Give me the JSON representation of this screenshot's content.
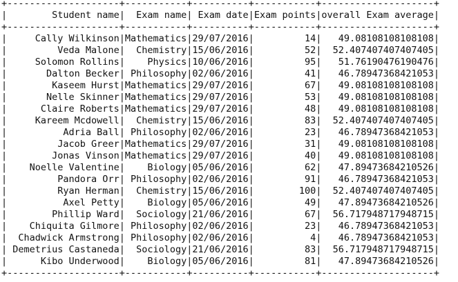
{
  "table": {
    "columns": [
      {
        "label": "Student name",
        "width": 20,
        "align": "right"
      },
      {
        "label": "Exam name",
        "width": 11,
        "align": "right"
      },
      {
        "label": "Exam date",
        "width": 10,
        "align": "right"
      },
      {
        "label": "Exam points",
        "width": 11,
        "align": "right"
      },
      {
        "label": "overall Exam average",
        "width": 20,
        "align": "right"
      }
    ],
    "rows": [
      [
        "Cally Wilkinson",
        "Mathematics",
        "29/07/2016",
        "14",
        "49.08108108108108"
      ],
      [
        "Veda Malone",
        "Chemistry",
        "15/06/2016",
        "52",
        "52.407407407407405"
      ],
      [
        "Solomon Rollins",
        "Physics",
        "10/06/2016",
        "95",
        "51.76190476190476"
      ],
      [
        "Dalton Becker",
        "Philosophy",
        "02/06/2016",
        "41",
        "46.78947368421053"
      ],
      [
        "Kaseem Hurst",
        "Mathematics",
        "29/07/2016",
        "67",
        "49.08108108108108"
      ],
      [
        "Nelle Skinner",
        "Mathematics",
        "29/07/2016",
        "53",
        "49.08108108108108"
      ],
      [
        "Claire Roberts",
        "Mathematics",
        "29/07/2016",
        "48",
        "49.08108108108108"
      ],
      [
        "Kareem Mcdowell",
        "Chemistry",
        "15/06/2016",
        "83",
        "52.407407407407405"
      ],
      [
        "Adria Ball",
        "Philosophy",
        "02/06/2016",
        "23",
        "46.78947368421053"
      ],
      [
        "Jacob Greer",
        "Mathematics",
        "29/07/2016",
        "31",
        "49.08108108108108"
      ],
      [
        "Jonas Vinson",
        "Mathematics",
        "29/07/2016",
        "40",
        "49.08108108108108"
      ],
      [
        "Noelle Valentine",
        "Biology",
        "05/06/2016",
        "62",
        "47.89473684210526"
      ],
      [
        "Pandora Orr",
        "Philosophy",
        "02/06/2016",
        "91",
        "46.78947368421053"
      ],
      [
        "Ryan Herman",
        "Chemistry",
        "15/06/2016",
        "100",
        "52.407407407407405"
      ],
      [
        "Axel Petty",
        "Biology",
        "05/06/2016",
        "49",
        "47.89473684210526"
      ],
      [
        "Phillip Ward",
        "Sociology",
        "21/06/2016",
        "67",
        "56.717948717948715"
      ],
      [
        "Chiquita Gilmore",
        "Philosophy",
        "02/06/2016",
        "23",
        "46.78947368421053"
      ],
      [
        "Chadwick Armstrong",
        "Philosophy",
        "02/06/2016",
        "4",
        "46.78947368421053"
      ],
      [
        "Demetrius Castaneda",
        "Sociology",
        "21/06/2016",
        "83",
        "56.717948717948715"
      ],
      [
        "Kibo Underwood",
        "Biology",
        "05/06/2016",
        "81",
        "47.89473684210526"
      ]
    ]
  }
}
